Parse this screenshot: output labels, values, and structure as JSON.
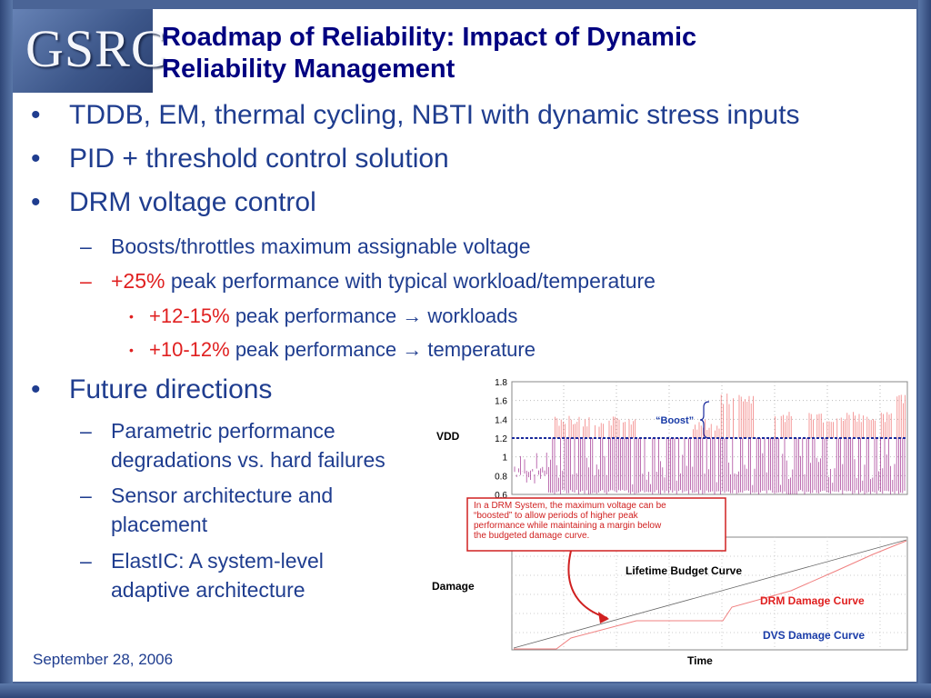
{
  "logo": {
    "text": "GSRC"
  },
  "title": {
    "line1": "Roadmap of Reliability:  Impact of Dynamic",
    "line2": "Reliability Management"
  },
  "bullets": {
    "b1": "TDDB, EM, thermal cycling, NBTI with dynamic stress inputs",
    "b2": "PID + threshold control solution",
    "b3": "DRM voltage control",
    "b3_1": "Boosts/throttles maximum assignable voltage",
    "b3_2_highlight": "+25%",
    "b3_2_rest": "peak performance with typical workload/temperature",
    "b3_2_1_highlight": "+12-15%",
    "b3_2_1_rest": "peak performance → workloads",
    "b3_2_2_highlight": "+10-12%",
    "b3_2_2_rest": "peak performance → temperature",
    "b4": "Future directions",
    "b4_1_line1": "Parametric performance",
    "b4_1_line2": "degradations vs. hard failures",
    "b4_2_line1": "Sensor architecture and",
    "b4_2_line2": "placement",
    "b4_3_line1": "ElastIC: A system-level",
    "b4_3_line2": "adaptive architecture"
  },
  "bullet_symbols": {
    "l1": "•",
    "l2": "–",
    "l3": "•"
  },
  "footer": {
    "date": "September 28, 2006"
  },
  "colors": {
    "title": "#000080",
    "body": "#1f3d8f",
    "highlight": "#e02020",
    "frame": "#4a6496"
  },
  "figure": {
    "vdd_label": "VDD",
    "boost_label": "“Boost”",
    "callout_lines": [
      "In a DRM System, the maximum voltage can be",
      "“boosted” to allow periods of higher peak",
      "performance while maintaining a margin below",
      "the budgeted damage curve."
    ],
    "damage_label": "Damage",
    "time_label": "Time",
    "lifetime_label": "Lifetime Budget Curve",
    "drm_label": "DRM Damage Curve",
    "dvs_label": "DVS Damage Curve",
    "drm_color": "#e02020",
    "dvs_color": "#1a3ca8"
  },
  "chart_data": [
    {
      "type": "line",
      "ylabel": "VDD",
      "ylim": [
        0.6,
        1.8
      ],
      "yticks": [
        "1.8",
        "1.6",
        "1.4",
        "1.2",
        "1",
        "0.8",
        "0.6"
      ],
      "reference_level": 1.2,
      "series": [
        {
          "name": "Boost",
          "color": "#f07070",
          "max": 1.8
        },
        {
          "color": "#a03090",
          "max": 1.2
        }
      ]
    },
    {
      "type": "line",
      "xlabel": "Time",
      "ylabel": "Damage",
      "series": [
        {
          "name": "Lifetime Budget Curve",
          "color": "#555555",
          "shape": "linear"
        },
        {
          "name": "DRM Damage Curve",
          "color": "#e02020",
          "shape": "stepped"
        },
        {
          "name": "DVS Damage Curve",
          "color": "#1a3ca8",
          "shape": "below budget"
        }
      ]
    }
  ]
}
